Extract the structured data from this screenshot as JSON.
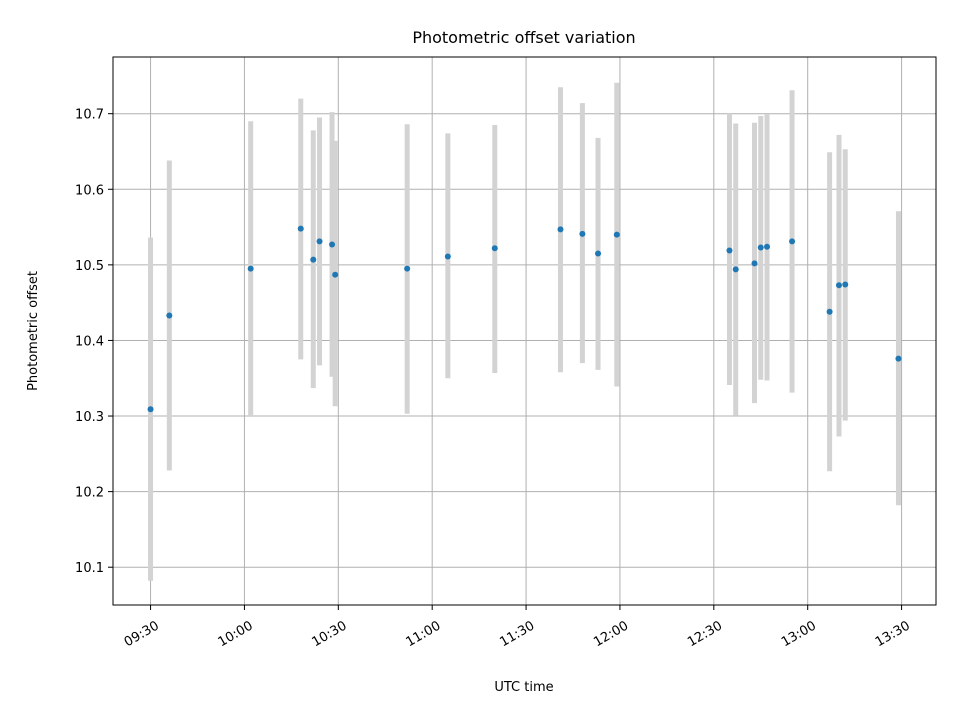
{
  "chart_data": {
    "type": "scatter",
    "title": "Photometric offset variation",
    "xlabel": "UTC time",
    "ylabel": "Photometric offset",
    "xlim": [
      "09:18",
      "13:41"
    ],
    "ylim": [
      10.05,
      10.775
    ],
    "x_ticks": [
      "09:30",
      "10:00",
      "10:30",
      "11:00",
      "11:30",
      "12:00",
      "12:30",
      "13:00",
      "13:30"
    ],
    "y_ticks": [
      10.1,
      10.2,
      10.3,
      10.4,
      10.5,
      10.6,
      10.7
    ],
    "grid": true,
    "colors": {
      "point": "#1f77b4",
      "errorbar": "#d3d3d3",
      "grid": "#b0b0b0"
    },
    "points": [
      {
        "x": "09:30",
        "y": 10.309,
        "ylow": 10.082,
        "yhigh": 10.536
      },
      {
        "x": "09:36",
        "y": 10.433,
        "ylow": 10.228,
        "yhigh": 10.638
      },
      {
        "x": "10:02",
        "y": 10.495,
        "ylow": 10.3,
        "yhigh": 10.69
      },
      {
        "x": "10:18",
        "y": 10.548,
        "ylow": 10.375,
        "yhigh": 10.72
      },
      {
        "x": "10:22",
        "y": 10.507,
        "ylow": 10.337,
        "yhigh": 10.678
      },
      {
        "x": "10:24",
        "y": 10.531,
        "ylow": 10.367,
        "yhigh": 10.695
      },
      {
        "x": "10:28",
        "y": 10.527,
        "ylow": 10.352,
        "yhigh": 10.702
      },
      {
        "x": "10:29",
        "y": 10.487,
        "ylow": 10.313,
        "yhigh": 10.664
      },
      {
        "x": "10:52",
        "y": 10.495,
        "ylow": 10.303,
        "yhigh": 10.686
      },
      {
        "x": "11:05",
        "y": 10.511,
        "ylow": 10.35,
        "yhigh": 10.674
      },
      {
        "x": "11:20",
        "y": 10.522,
        "ylow": 10.357,
        "yhigh": 10.685
      },
      {
        "x": "11:41",
        "y": 10.547,
        "ylow": 10.358,
        "yhigh": 10.735
      },
      {
        "x": "11:48",
        "y": 10.541,
        "ylow": 10.37,
        "yhigh": 10.714
      },
      {
        "x": "11:53",
        "y": 10.515,
        "ylow": 10.361,
        "yhigh": 10.668
      },
      {
        "x": "11:59",
        "y": 10.54,
        "ylow": 10.339,
        "yhigh": 10.741
      },
      {
        "x": "12:35",
        "y": 10.519,
        "ylow": 10.341,
        "yhigh": 10.7
      },
      {
        "x": "12:37",
        "y": 10.494,
        "ylow": 10.301,
        "yhigh": 10.687
      },
      {
        "x": "12:43",
        "y": 10.502,
        "ylow": 10.317,
        "yhigh": 10.688
      },
      {
        "x": "12:45",
        "y": 10.523,
        "ylow": 10.348,
        "yhigh": 10.697
      },
      {
        "x": "12:47",
        "y": 10.524,
        "ylow": 10.347,
        "yhigh": 10.699
      },
      {
        "x": "12:55",
        "y": 10.531,
        "ylow": 10.331,
        "yhigh": 10.731
      },
      {
        "x": "13:07",
        "y": 10.438,
        "ylow": 10.227,
        "yhigh": 10.649
      },
      {
        "x": "13:10",
        "y": 10.473,
        "ylow": 10.273,
        "yhigh": 10.672
      },
      {
        "x": "13:12",
        "y": 10.474,
        "ylow": 10.294,
        "yhigh": 10.653
      },
      {
        "x": "13:29",
        "y": 10.376,
        "ylow": 10.182,
        "yhigh": 10.571
      }
    ]
  }
}
